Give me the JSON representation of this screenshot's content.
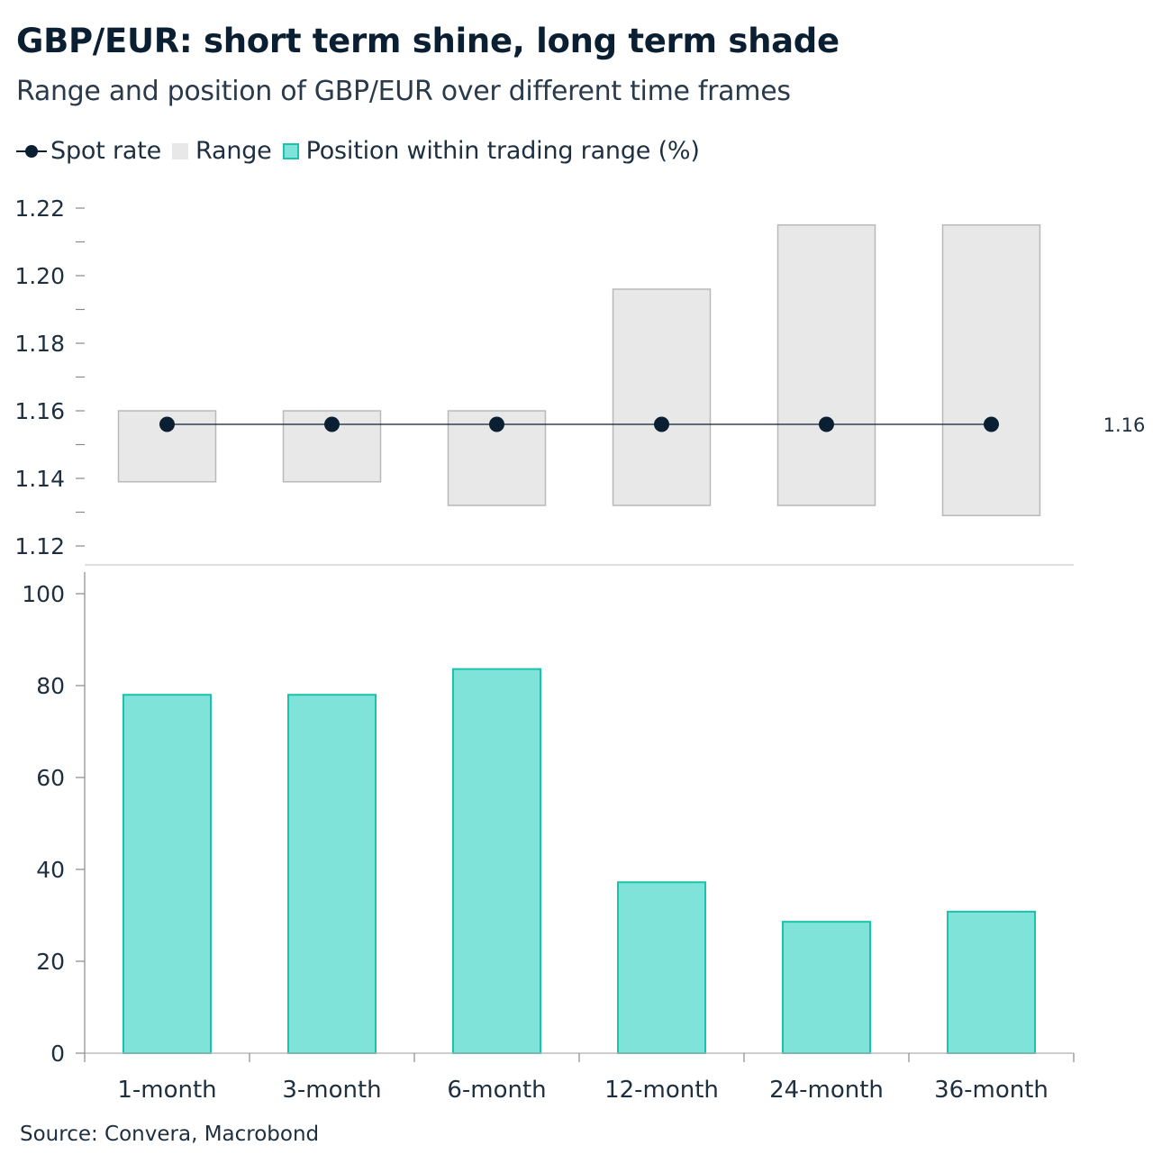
{
  "title": "GBP/EUR: short term shine, long term shade",
  "subtitle": "Range and position of GBP/EUR over different time frames",
  "legend": {
    "spot": "Spot rate",
    "range": "Range",
    "position": "Position within trading range (%)"
  },
  "source": "Source: Convera, Macrobond",
  "colors": {
    "spot": "#0b1f33",
    "range_fill": "#e8e8e8",
    "range_stroke": "#b9b9b9",
    "bar_fill": "#7fe3d9",
    "bar_stroke": "#19c3ae"
  },
  "chart_data": [
    {
      "type": "range",
      "categories": [
        "1-month",
        "3-month",
        "6-month",
        "12-month",
        "24-month",
        "36-month"
      ],
      "series": [
        {
          "name": "Range",
          "low": [
            1.139,
            1.139,
            1.132,
            1.132,
            1.132,
            1.129
          ],
          "high": [
            1.16,
            1.16,
            1.16,
            1.196,
            1.215,
            1.215
          ]
        },
        {
          "name": "Spot rate",
          "values": [
            1.156,
            1.156,
            1.156,
            1.156,
            1.156,
            1.156
          ]
        }
      ],
      "spot_label": "1.16",
      "ylim": [
        1.12,
        1.22
      ],
      "yticks": [
        "1.22",
        "1.20",
        "1.18",
        "1.16",
        "1.14",
        "1.12"
      ],
      "ytick_values": [
        1.22,
        1.2,
        1.18,
        1.16,
        1.14,
        1.12
      ],
      "minor_tick_values": [
        1.21,
        1.19,
        1.17,
        1.15,
        1.13
      ]
    },
    {
      "type": "bar",
      "categories": [
        "1-month",
        "3-month",
        "6-month",
        "12-month",
        "24-month",
        "36-month"
      ],
      "series": [
        {
          "name": "Position within trading range (%)",
          "values": [
            78,
            78,
            83.6,
            37.2,
            28.6,
            30.8
          ]
        }
      ],
      "ylim": [
        0,
        100
      ],
      "yticks": [
        "100",
        "80",
        "60",
        "40",
        "20",
        "0"
      ],
      "ytick_values": [
        100,
        80,
        60,
        40,
        20,
        0
      ]
    }
  ]
}
